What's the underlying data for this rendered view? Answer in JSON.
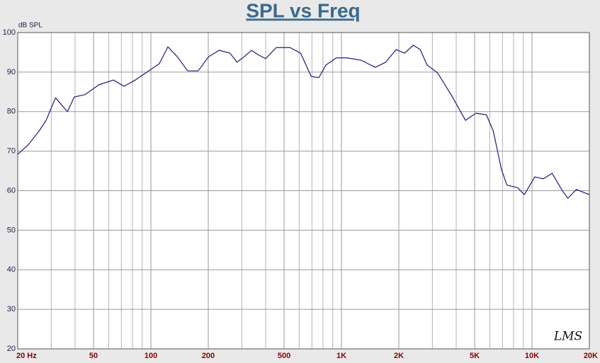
{
  "chart_data": {
    "type": "line",
    "title": "SPL vs Freq",
    "y_label": "dB SPL",
    "watermark": "LMS",
    "x_log": true,
    "grid": true,
    "color": "#1c1c7a",
    "xlim": [
      20,
      20000
    ],
    "ylim": [
      20,
      100
    ],
    "xticks": [
      {
        "value": 20,
        "label": "20 Hz"
      },
      50,
      100,
      200,
      500,
      {
        "value": 1000,
        "label": "1K"
      },
      {
        "value": 2000,
        "label": "2K"
      },
      {
        "value": 5000,
        "label": "5K"
      },
      {
        "value": 10000,
        "label": "10K"
      },
      {
        "value": 20000,
        "label": "20K"
      }
    ],
    "x_minor_grid": [
      30,
      40,
      60,
      70,
      80,
      90,
      300,
      400,
      600,
      700,
      800,
      900,
      3000,
      4000,
      6000,
      7000,
      8000,
      9000
    ],
    "yticks": [
      20,
      30,
      40,
      50,
      60,
      70,
      80,
      90,
      100
    ],
    "x": [
      20,
      22.7,
      25.9,
      28.2,
      31.6,
      34.4,
      36.5,
      39.6,
      45.1,
      53.4,
      63.6,
      72.2,
      82.9,
      97.3,
      110.6,
      122.8,
      137.4,
      156,
      177,
      201,
      228,
      260,
      283,
      309,
      337,
      368,
      400,
      455,
      537,
      610,
      694,
      761,
      829,
      941,
      1069,
      1268,
      1505,
      1708,
      1937,
      2145,
      2383,
      2590,
      2814,
      3194,
      3782,
      4475,
      5080,
      5765,
      6260,
      6920,
      7390,
      8380,
      9110,
      10340,
      11460,
      12750,
      14470,
      15440,
      17080,
      20000
    ],
    "values": [
      69.2,
      71.6,
      75.1,
      77.8,
      83.5,
      81.4,
      80.0,
      83.7,
      84.3,
      86.8,
      88.0,
      86.4,
      88.0,
      90.3,
      92.1,
      96.4,
      93.9,
      90.3,
      90.3,
      93.9,
      95.5,
      94.8,
      92.5,
      93.9,
      95.5,
      94.3,
      93.4,
      96.2,
      96.2,
      94.8,
      88.9,
      88.6,
      91.8,
      93.6,
      93.6,
      93.0,
      91.2,
      92.5,
      95.7,
      94.8,
      96.8,
      95.7,
      91.8,
      89.8,
      84.1,
      77.8,
      79.6,
      79.2,
      75.1,
      65.3,
      61.4,
      60.8,
      59.0,
      63.5,
      63.0,
      64.4,
      59.9,
      58.1,
      60.3,
      59.0
    ]
  }
}
